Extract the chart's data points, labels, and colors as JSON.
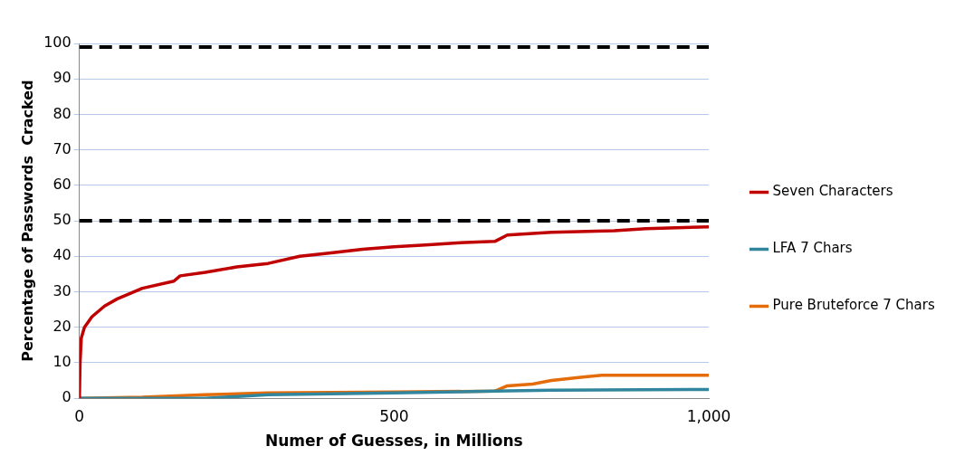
{
  "chart_data": {
    "type": "line",
    "xlabel": "Numer of Guesses, in Millions",
    "ylabel": "Percentage of Passwords  Cracked",
    "xlim": [
      0,
      1000
    ],
    "xticks": [
      0,
      500,
      {
        "value": 1000,
        "label": "1,000"
      }
    ],
    "ylim": [
      0,
      100
    ],
    "yticks": [
      0,
      10,
      20,
      30,
      40,
      50,
      60,
      70,
      80,
      90,
      100
    ],
    "grid": "y",
    "legend": "right",
    "marker": "none",
    "line_style": "solid",
    "ref_lines": [
      {
        "axis": "y",
        "value": 99,
        "color": "#000000",
        "line_style": "dashed"
      },
      {
        "axis": "y",
        "value": 50,
        "color": "#000000",
        "line_style": "dashed"
      }
    ],
    "series": [
      {
        "name": "Seven Characters",
        "color": "#c00000",
        "x": [
          0,
          1,
          3,
          8,
          20,
          40,
          60,
          100,
          150,
          160,
          200,
          250,
          300,
          350,
          400,
          450,
          500,
          550,
          600,
          660,
          680,
          750,
          850,
          900,
          1000
        ],
        "values": [
          0,
          10,
          17,
          20,
          23,
          26,
          28,
          31,
          33,
          34.5,
          35.5,
          37,
          38,
          40,
          41,
          42,
          42.7,
          43.2,
          43.8,
          44.2,
          46,
          46.8,
          47.2,
          47.8,
          48.3
        ]
      },
      {
        "name": "LFA 7 Chars",
        "color": "#31859c",
        "x": [
          0,
          200,
          300,
          500,
          660,
          750,
          1000
        ],
        "values": [
          0,
          0,
          1,
          1.5,
          2,
          2.3,
          2.5
        ]
      },
      {
        "name": "Pure Bruteforce 7 Chars",
        "color": "#e46c0a",
        "x": [
          0,
          100,
          200,
          300,
          500,
          660,
          680,
          720,
          750,
          800,
          830,
          1000
        ],
        "values": [
          0,
          0.3,
          1,
          1.5,
          1.8,
          2,
          3.5,
          4,
          5,
          6,
          6.5,
          6.5
        ]
      }
    ]
  }
}
